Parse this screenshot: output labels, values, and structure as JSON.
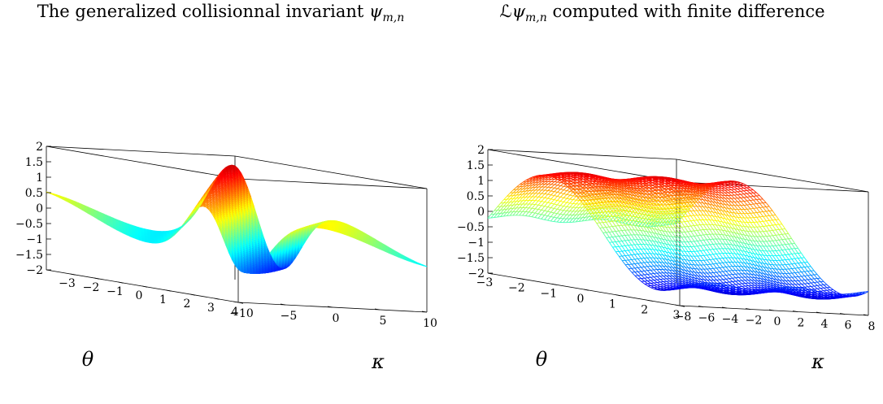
{
  "chart_data": [
    {
      "type": "surface-mesh-3d",
      "title": {
        "text": "The generalized collisionnal invariant ",
        "symbol": "ψ",
        "subscript": "m,n"
      },
      "xlabel": "θ",
      "ylabel": "κ",
      "xlim": [
        -4,
        4
      ],
      "ylim": [
        -10,
        10
      ],
      "zlim": [
        -2,
        2
      ],
      "x_ticks": [
        "−3",
        "−2",
        "−1",
        "0",
        "1",
        "2",
        "3",
        "4"
      ],
      "y_ticks": [
        "−10",
        "−5",
        "0",
        "5",
        "10"
      ],
      "z_ticks": [
        "2",
        "1.5",
        "1",
        "0.5",
        "0",
        "−0.5",
        "−1",
        "−1.5",
        "−2"
      ],
      "colormap": "jet"
    },
    {
      "type": "surface-mesh-3d",
      "title": {
        "prefix": "ℒ",
        "symbol": "ψ",
        "subscript": "m,n",
        "text": " computed with finite difference"
      },
      "xlabel": "θ",
      "ylabel": "κ",
      "xlim": [
        -3,
        3
      ],
      "ylim": [
        -8,
        8
      ],
      "zlim": [
        -2,
        2
      ],
      "x_ticks": [
        "−3",
        "−2",
        "−1",
        "0",
        "1",
        "2",
        "3"
      ],
      "y_ticks": [
        "−8",
        "−6",
        "−4",
        "−2",
        "0",
        "2",
        "4",
        "6",
        "8"
      ],
      "z_ticks": [
        "2",
        "1.5",
        "1",
        "0.5",
        "0",
        "−0.5",
        "−1",
        "−1.5",
        "−2"
      ],
      "colormap": "jet"
    }
  ]
}
